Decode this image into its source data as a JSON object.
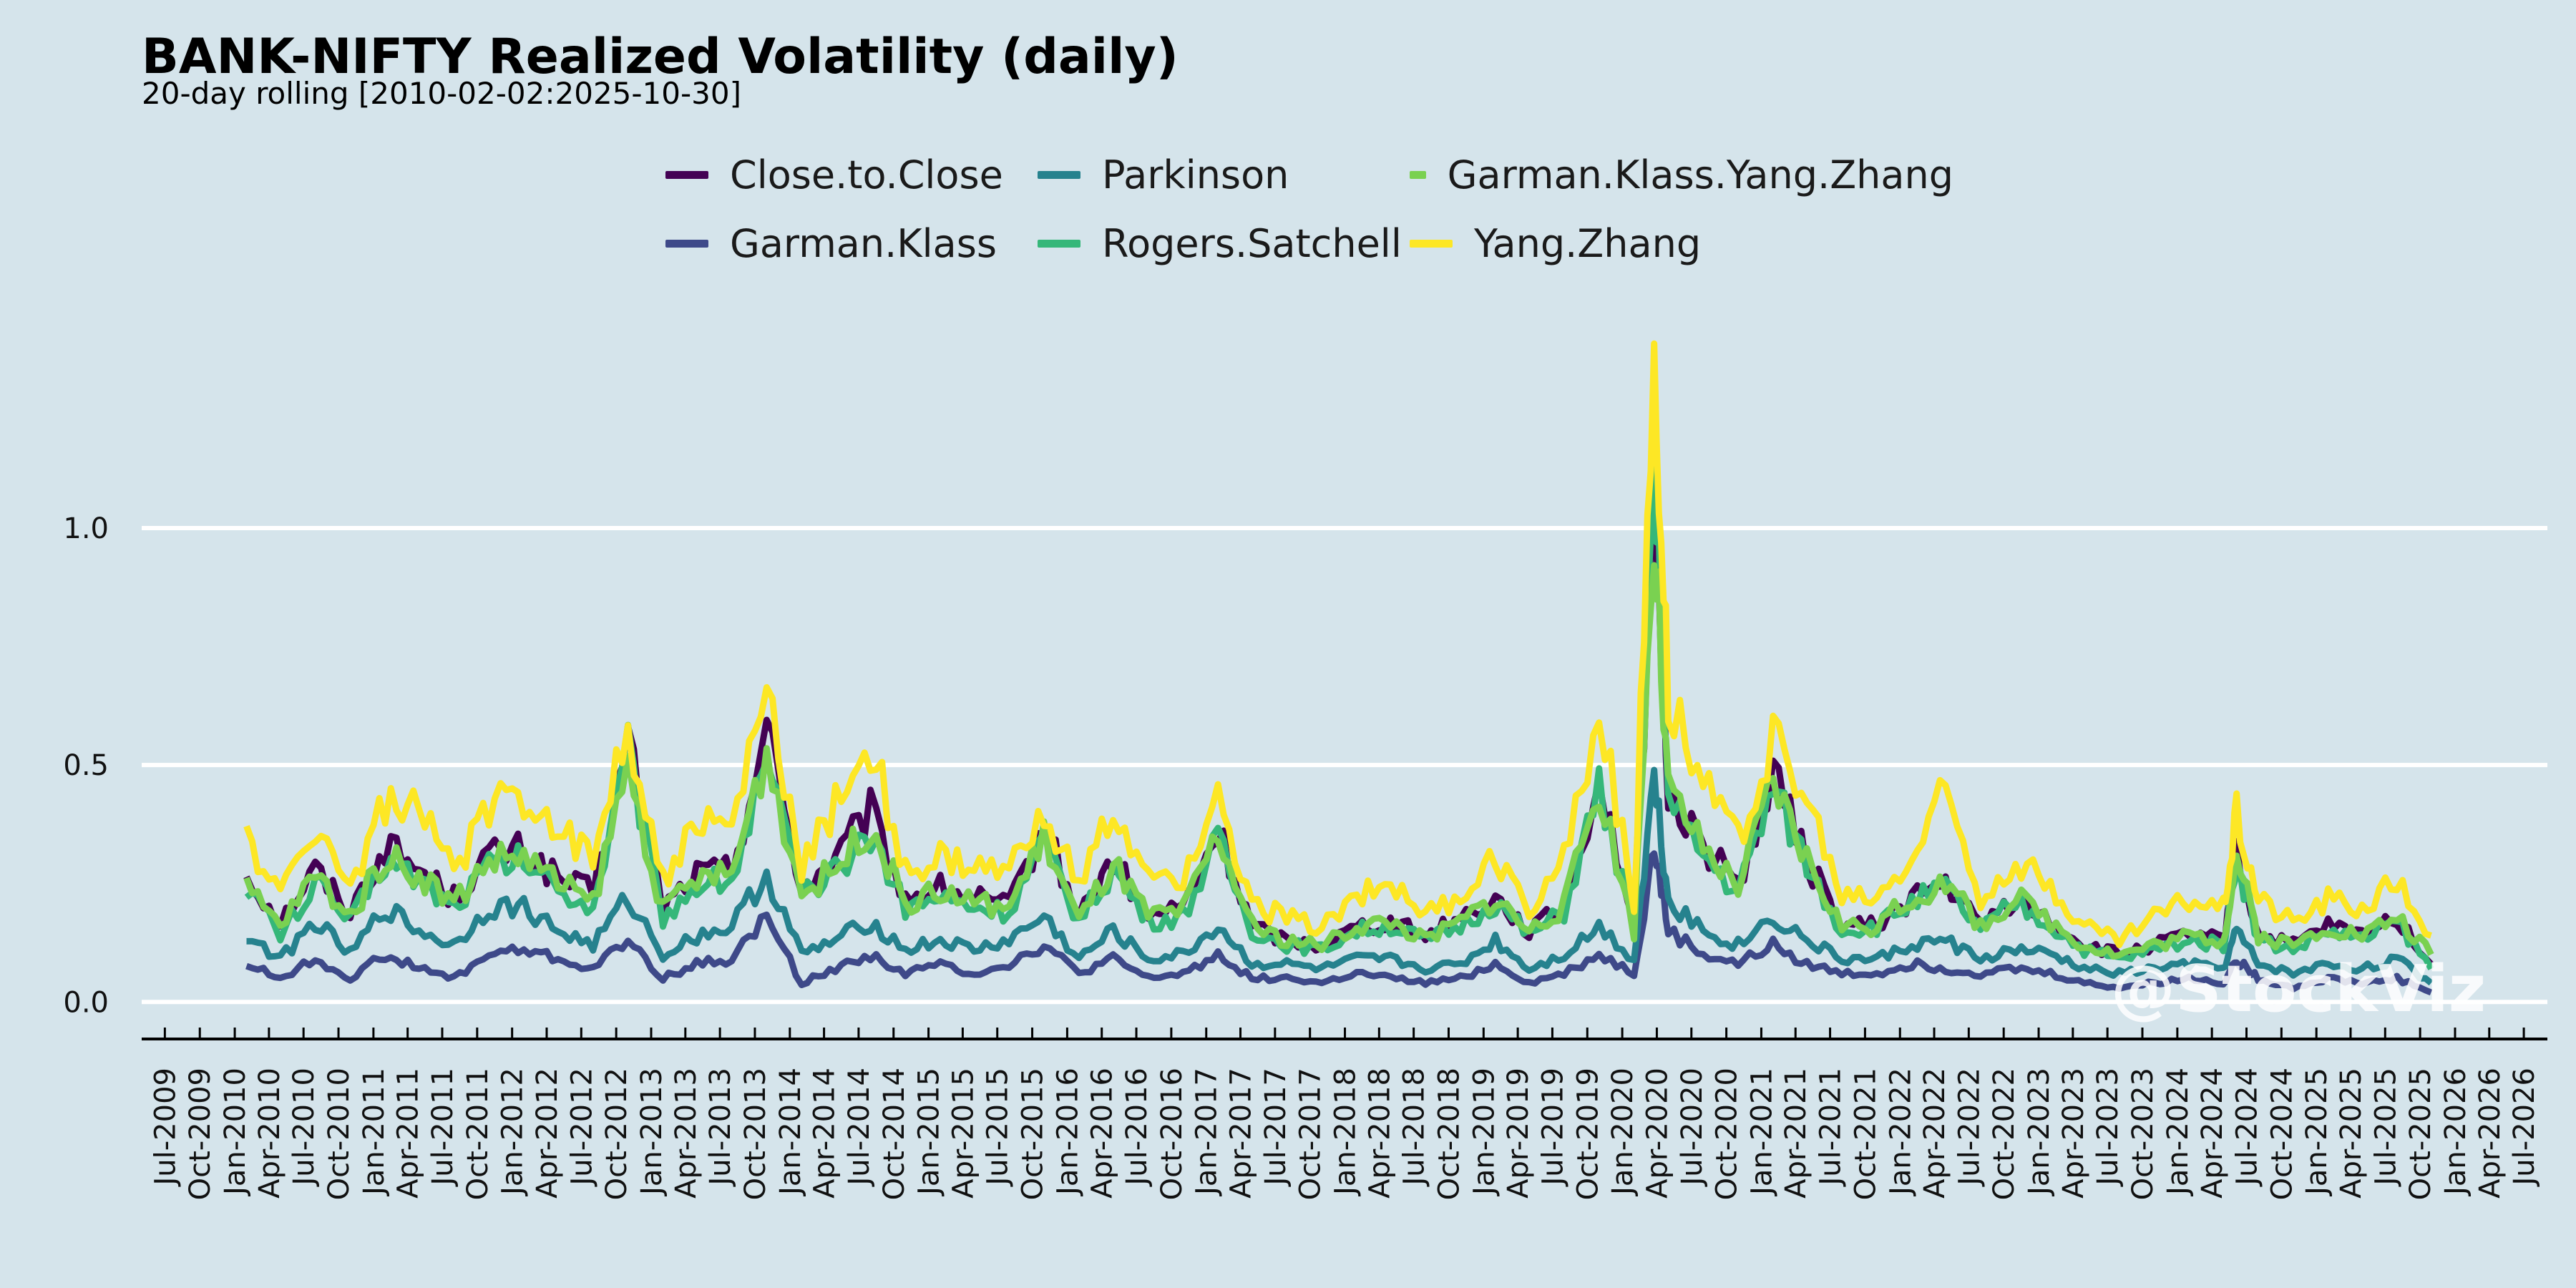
{
  "chart_data": {
    "type": "line",
    "title": "BANK-NIFTY Realized Volatility (daily)",
    "subtitle": "20-day rolling [2010-02-02:2025-10-30]",
    "xlabel": "",
    "ylabel": "",
    "xlim": [
      "2009-05-01",
      "2026-09-01"
    ],
    "ylim": [
      -0.06,
      1.45
    ],
    "yticks": [
      0.0,
      0.5,
      1.0
    ],
    "ytick_labels": [
      "0.0",
      "0.5",
      "1.0"
    ],
    "grid": "horizontal",
    "legend_position": "top-center",
    "x_tick_labels": [
      "Jul-2009",
      "Oct-2009",
      "Jan-2010",
      "Apr-2010",
      "Jul-2010",
      "Oct-2010",
      "Jan-2011",
      "Apr-2011",
      "Jul-2011",
      "Oct-2011",
      "Jan-2012",
      "Apr-2012",
      "Jul-2012",
      "Oct-2012",
      "Jan-2013",
      "Apr-2013",
      "Jul-2013",
      "Oct-2013",
      "Jan-2014",
      "Apr-2014",
      "Jul-2014",
      "Oct-2014",
      "Jan-2015",
      "Apr-2015",
      "Jul-2015",
      "Oct-2015",
      "Jan-2016",
      "Apr-2016",
      "Jul-2016",
      "Oct-2016",
      "Jan-2017",
      "Apr-2017",
      "Jul-2017",
      "Oct-2017",
      "Jan-2018",
      "Apr-2018",
      "Jul-2018",
      "Oct-2018",
      "Jan-2019",
      "Apr-2019",
      "Jul-2019",
      "Oct-2019",
      "Jan-2020",
      "Apr-2020",
      "Jul-2020",
      "Oct-2020",
      "Jan-2021",
      "Apr-2021",
      "Jul-2021",
      "Oct-2021",
      "Jan-2022",
      "Apr-2022",
      "Jul-2022",
      "Oct-2022",
      "Jan-2023",
      "Apr-2023",
      "Jul-2023",
      "Oct-2023",
      "Jan-2024",
      "Apr-2024",
      "Jul-2024",
      "Oct-2024",
      "Jan-2025",
      "Apr-2025",
      "Jul-2025",
      "Oct-2025",
      "Jan-2026",
      "Apr-2026",
      "Jul-2026"
    ],
    "x": [
      "2010-02-01",
      "2010-05-01",
      "2010-08-01",
      "2010-11-01",
      "2011-02-01",
      "2011-05-01",
      "2011-08-01",
      "2011-11-01",
      "2012-02-01",
      "2012-05-01",
      "2012-08-01",
      "2012-11-01",
      "2013-02-01",
      "2013-05-01",
      "2013-08-01",
      "2013-11-01",
      "2014-02-01",
      "2014-05-01",
      "2014-08-01",
      "2014-11-01",
      "2015-02-01",
      "2015-05-01",
      "2015-08-01",
      "2015-11-01",
      "2016-02-01",
      "2016-05-01",
      "2016-08-01",
      "2016-11-01",
      "2017-02-01",
      "2017-05-01",
      "2017-08-01",
      "2017-11-01",
      "2018-02-01",
      "2018-05-01",
      "2018-08-01",
      "2018-11-01",
      "2019-02-01",
      "2019-05-01",
      "2019-08-01",
      "2019-11-01",
      "2020-02-01",
      "2020-03-25",
      "2020-05-01",
      "2020-08-01",
      "2020-11-01",
      "2021-02-01",
      "2021-05-01",
      "2021-08-01",
      "2021-11-01",
      "2022-02-01",
      "2022-05-01",
      "2022-08-01",
      "2022-11-01",
      "2023-02-01",
      "2023-05-01",
      "2023-08-01",
      "2023-11-01",
      "2024-02-01",
      "2024-05-01",
      "2024-06-05",
      "2024-08-01",
      "2024-11-01",
      "2025-02-01",
      "2025-05-01",
      "2025-08-01",
      "2025-10-30"
    ],
    "series": [
      {
        "name": "Close.to.Close",
        "color": "#440154",
        "values": [
          0.27,
          0.17,
          0.28,
          0.19,
          0.33,
          0.28,
          0.22,
          0.31,
          0.32,
          0.26,
          0.23,
          0.55,
          0.2,
          0.27,
          0.28,
          0.58,
          0.24,
          0.3,
          0.4,
          0.22,
          0.24,
          0.22,
          0.2,
          0.37,
          0.18,
          0.3,
          0.18,
          0.2,
          0.36,
          0.16,
          0.13,
          0.12,
          0.16,
          0.17,
          0.14,
          0.18,
          0.22,
          0.15,
          0.2,
          0.48,
          0.16,
          1.05,
          0.45,
          0.33,
          0.25,
          0.48,
          0.3,
          0.16,
          0.16,
          0.22,
          0.25,
          0.16,
          0.22,
          0.17,
          0.12,
          0.1,
          0.12,
          0.14,
          0.13,
          0.32,
          0.14,
          0.12,
          0.16,
          0.14,
          0.18,
          0.08
        ]
      },
      {
        "name": "Garman.Klass",
        "color": "#3e4989",
        "values": [
          0.08,
          0.05,
          0.09,
          0.05,
          0.1,
          0.07,
          0.05,
          0.1,
          0.11,
          0.09,
          0.07,
          0.13,
          0.05,
          0.08,
          0.09,
          0.18,
          0.04,
          0.07,
          0.1,
          0.06,
          0.08,
          0.06,
          0.08,
          0.12,
          0.06,
          0.09,
          0.05,
          0.06,
          0.1,
          0.05,
          0.05,
          0.04,
          0.06,
          0.05,
          0.04,
          0.05,
          0.08,
          0.04,
          0.06,
          0.1,
          0.06,
          0.33,
          0.15,
          0.1,
          0.08,
          0.12,
          0.08,
          0.06,
          0.06,
          0.08,
          0.07,
          0.06,
          0.07,
          0.06,
          0.04,
          0.03,
          0.04,
          0.05,
          0.04,
          0.09,
          0.05,
          0.03,
          0.05,
          0.04,
          0.05,
          0.02
        ]
      },
      {
        "name": "Parkinson",
        "color": "#26828e",
        "values": [
          0.14,
          0.09,
          0.17,
          0.1,
          0.2,
          0.15,
          0.12,
          0.2,
          0.2,
          0.15,
          0.12,
          0.22,
          0.1,
          0.14,
          0.16,
          0.27,
          0.1,
          0.13,
          0.17,
          0.11,
          0.13,
          0.11,
          0.13,
          0.18,
          0.09,
          0.15,
          0.09,
          0.1,
          0.16,
          0.08,
          0.08,
          0.07,
          0.09,
          0.09,
          0.07,
          0.08,
          0.13,
          0.07,
          0.1,
          0.16,
          0.09,
          0.48,
          0.22,
          0.15,
          0.12,
          0.18,
          0.13,
          0.09,
          0.09,
          0.12,
          0.13,
          0.09,
          0.11,
          0.1,
          0.07,
          0.06,
          0.07,
          0.08,
          0.07,
          0.15,
          0.08,
          0.06,
          0.08,
          0.07,
          0.09,
          0.04
        ]
      },
      {
        "name": "Rogers.Satchell",
        "color": "#35b779",
        "values": [
          0.25,
          0.14,
          0.25,
          0.17,
          0.3,
          0.26,
          0.2,
          0.29,
          0.3,
          0.24,
          0.2,
          0.53,
          0.18,
          0.25,
          0.26,
          0.5,
          0.22,
          0.27,
          0.36,
          0.2,
          0.22,
          0.2,
          0.19,
          0.34,
          0.17,
          0.28,
          0.17,
          0.18,
          0.34,
          0.15,
          0.12,
          0.11,
          0.15,
          0.16,
          0.13,
          0.16,
          0.21,
          0.14,
          0.19,
          0.45,
          0.15,
          1.15,
          0.42,
          0.31,
          0.23,
          0.45,
          0.29,
          0.15,
          0.16,
          0.21,
          0.24,
          0.15,
          0.21,
          0.16,
          0.11,
          0.09,
          0.11,
          0.13,
          0.12,
          0.3,
          0.13,
          0.11,
          0.15,
          0.13,
          0.17,
          0.07
        ]
      },
      {
        "name": "Garman.Klass.Yang.Zhang",
        "color": "#7ad151",
        "values": [
          0.24,
          0.16,
          0.27,
          0.18,
          0.31,
          0.27,
          0.21,
          0.3,
          0.31,
          0.25,
          0.21,
          0.5,
          0.19,
          0.26,
          0.27,
          0.53,
          0.23,
          0.28,
          0.38,
          0.21,
          0.23,
          0.21,
          0.2,
          0.35,
          0.17,
          0.29,
          0.18,
          0.19,
          0.35,
          0.16,
          0.13,
          0.12,
          0.16,
          0.17,
          0.13,
          0.17,
          0.22,
          0.15,
          0.2,
          0.46,
          0.15,
          1.0,
          0.44,
          0.32,
          0.24,
          0.46,
          0.3,
          0.16,
          0.16,
          0.22,
          0.25,
          0.16,
          0.22,
          0.17,
          0.12,
          0.1,
          0.12,
          0.14,
          0.13,
          0.31,
          0.14,
          0.12,
          0.16,
          0.14,
          0.18,
          0.1
        ]
      },
      {
        "name": "Yang.Zhang",
        "color": "#fde725",
        "values": [
          0.35,
          0.22,
          0.38,
          0.24,
          0.42,
          0.4,
          0.28,
          0.4,
          0.44,
          0.37,
          0.3,
          0.6,
          0.25,
          0.38,
          0.36,
          0.66,
          0.28,
          0.42,
          0.55,
          0.27,
          0.3,
          0.28,
          0.27,
          0.42,
          0.24,
          0.4,
          0.25,
          0.27,
          0.42,
          0.2,
          0.18,
          0.16,
          0.22,
          0.26,
          0.18,
          0.22,
          0.3,
          0.2,
          0.3,
          0.63,
          0.2,
          1.4,
          0.66,
          0.46,
          0.34,
          0.56,
          0.42,
          0.22,
          0.22,
          0.3,
          0.45,
          0.22,
          0.3,
          0.24,
          0.16,
          0.13,
          0.18,
          0.22,
          0.2,
          0.4,
          0.22,
          0.17,
          0.22,
          0.2,
          0.26,
          0.14
        ]
      }
    ]
  },
  "watermark": "@StockViz"
}
